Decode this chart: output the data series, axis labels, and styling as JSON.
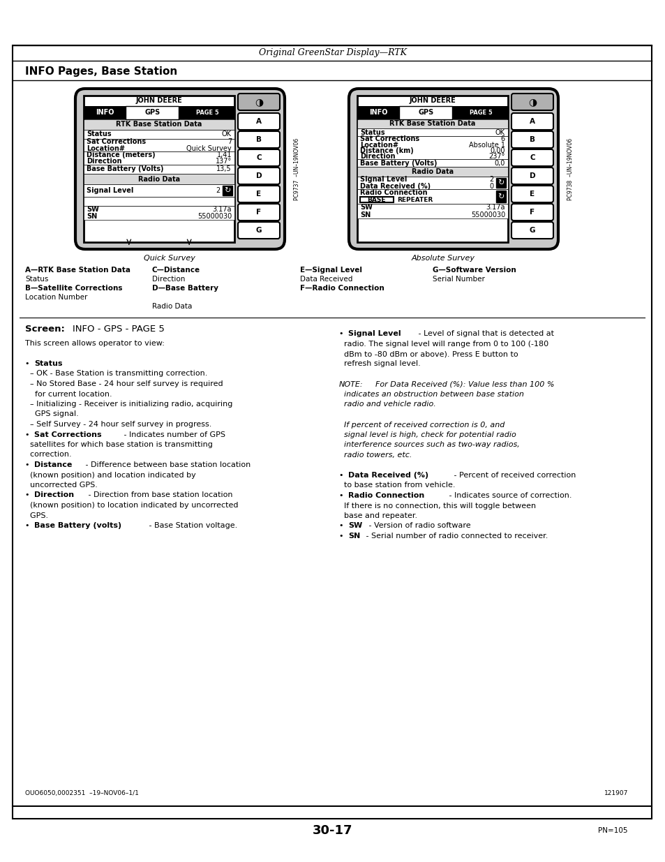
{
  "page_title": "Original GreenStar Display—RTK",
  "section_title": "INFO Pages, Base Station",
  "bg_color": "#ffffff",
  "caption_left": "Quick Survey",
  "caption_right": "Absolute Survey",
  "page_number": "30-17",
  "pn": "PN=105",
  "ref_left": "OUO6050,0002351  –19–NOV06–1/1",
  "ref_right": "121907"
}
